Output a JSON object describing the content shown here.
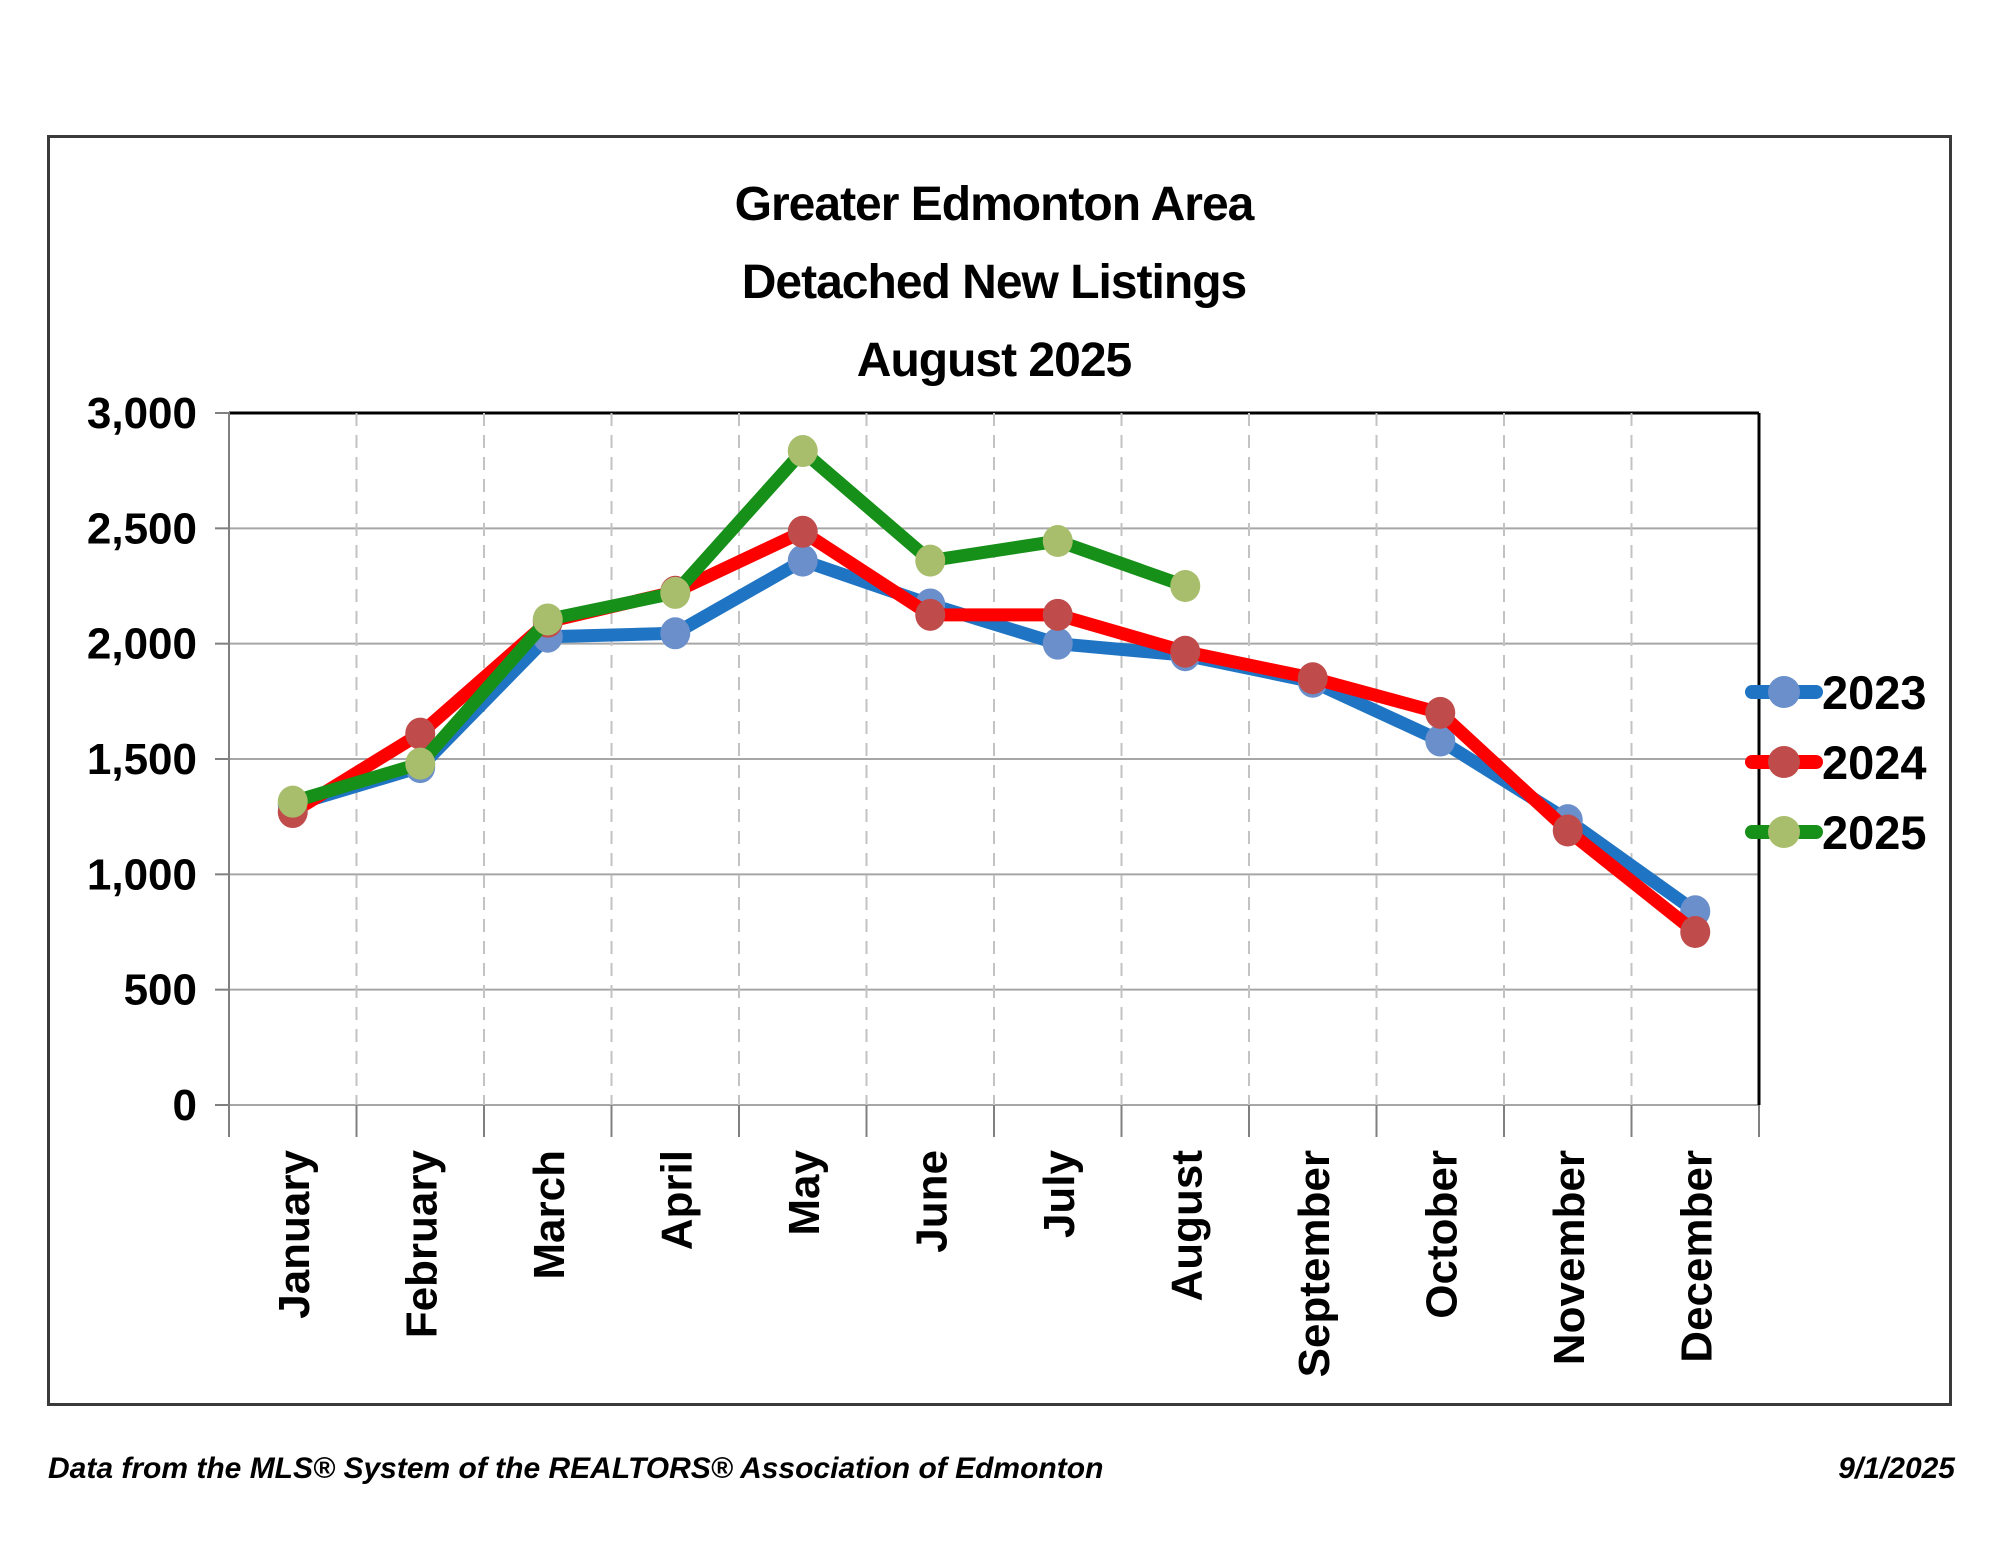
{
  "footer": {
    "source": "Data from the MLS® System of the REALTORS® Association of Edmonton",
    "date": "9/1/2025"
  },
  "chart_data": {
    "type": "line",
    "title_lines": [
      "Greater Edmonton Area",
      "Detached New Listings",
      "August 2025"
    ],
    "categories": [
      "January",
      "February",
      "March",
      "April",
      "May",
      "June",
      "July",
      "August",
      "September",
      "October",
      "November",
      "December"
    ],
    "series": [
      {
        "name": "2023",
        "line_color": "#1F74C4",
        "marker_color": "#6A8FCB",
        "values": [
          1300,
          1465,
          2030,
          2045,
          2360,
          2170,
          2000,
          1950,
          1835,
          1580,
          1235,
          840
        ]
      },
      {
        "name": "2024",
        "line_color": "#FE0000",
        "marker_color": "#BF4B4B",
        "values": [
          1270,
          1610,
          2095,
          2225,
          2485,
          2125,
          2125,
          1965,
          1850,
          1700,
          1190,
          750
        ]
      },
      {
        "name": "2025",
        "line_color": "#169018",
        "marker_color": "#A8BE6C",
        "values": [
          1315,
          1480,
          2105,
          2220,
          2835,
          2360,
          2445,
          2250,
          null,
          null,
          null,
          null
        ]
      }
    ],
    "ylim": [
      0,
      3000
    ],
    "ytick_step": 500,
    "ytick_labels": [
      "0",
      "500",
      "1,000",
      "1,500",
      "2,000",
      "2,500",
      "3,000"
    ],
    "xlabel": "",
    "ylabel": "",
    "grid": {
      "horizontal": "solid gray",
      "vertical": "dashed gray"
    },
    "legend_position": "right",
    "colors": {
      "grid_h": "#A6A6A6",
      "grid_v": "#C3C3C3",
      "axis": "#808080",
      "plot_border": "#000000",
      "text": "#000000"
    }
  }
}
